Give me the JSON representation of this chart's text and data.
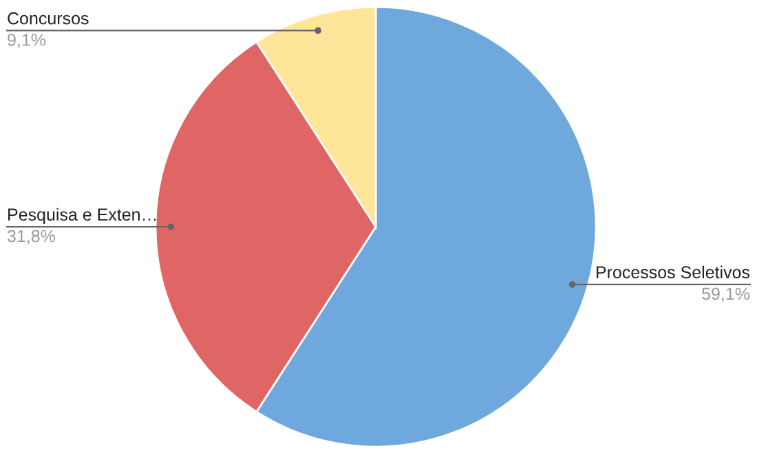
{
  "chart_data": {
    "type": "pie",
    "categories": [
      "Processos Seletivos",
      "Pesquisa e Exten…",
      "Concursos"
    ],
    "values": [
      59.1,
      31.8,
      9.1
    ],
    "value_labels": [
      "59,1%",
      "31,8%",
      "9,1%"
    ],
    "colors": [
      "#6fa8dc",
      "#e06666",
      "#ffe599"
    ],
    "legend": false
  }
}
